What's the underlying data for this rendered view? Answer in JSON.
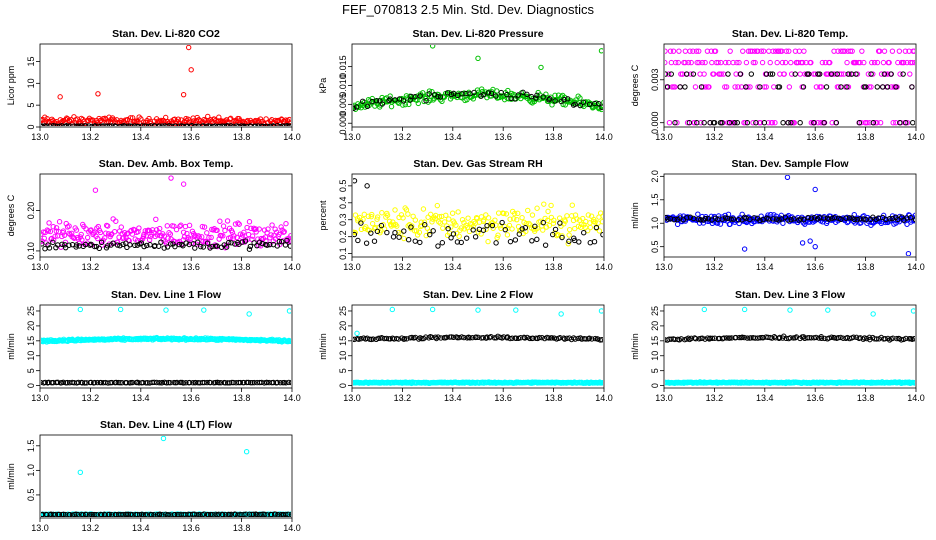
{
  "title": "FEF_070813  2.5 Min. Std. Dev. Diagnostics",
  "chart_data": [
    {
      "type": "scatter",
      "title": "Stan. Dev. Li-820 CO2",
      "ylabel": "Licor ppm",
      "xlim": [
        13.0,
        14.0
      ],
      "ylim": [
        0,
        19
      ],
      "xticks": [
        "13.0",
        "13.2",
        "13.4",
        "13.6",
        "13.8",
        "14.0"
      ],
      "yticks": [
        {
          "v": 0,
          "l": "0"
        },
        {
          "v": 5,
          "l": "5"
        },
        {
          "v": 10,
          "l": "10"
        },
        {
          "v": 15,
          "l": "15"
        }
      ],
      "series": [
        {
          "name": "primary",
          "color": "#ff0000",
          "base": 1.3,
          "spread": 1.4,
          "n": 220,
          "outliers": [
            [
              13.59,
              18.2
            ],
            [
              13.6,
              13.1
            ],
            [
              13.57,
              7.4
            ],
            [
              13.23,
              7.6
            ],
            [
              13.08,
              6.9
            ]
          ]
        },
        {
          "name": "secondary",
          "color": "#000000",
          "base": 0.2,
          "spread": 0.15,
          "n": 110,
          "outliers": []
        }
      ]
    },
    {
      "type": "scatter",
      "title": "Stan. Dev. Li-820 Pressure",
      "ylabel": "kPa",
      "xlim": [
        13.0,
        14.0
      ],
      "ylim": [
        -0.001,
        0.021
      ],
      "xticks": [
        "13.0",
        "13.2",
        "13.4",
        "13.6",
        "13.8",
        "14.0"
      ],
      "yticks": [
        {
          "v": 0,
          "l": "0.000"
        },
        {
          "v": 0.005,
          "l": "0.005"
        },
        {
          "v": 0.01,
          "l": "0.010"
        },
        {
          "v": 0.015,
          "l": "0.015"
        }
      ],
      "series": [
        {
          "name": "primary",
          "color": "#00c000",
          "base": 0.006,
          "spread": 0.002,
          "arch": 0.003,
          "n": 240,
          "outliers": [
            [
              13.32,
              0.0205
            ],
            [
              13.5,
              0.0172
            ],
            [
              13.75,
              0.0148
            ],
            [
              13.99,
              0.0192
            ]
          ]
        },
        {
          "name": "secondary",
          "color": "#000000",
          "base": 0.006,
          "spread": 0.0015,
          "arch": 0.003,
          "n": 60,
          "outliers": []
        }
      ]
    },
    {
      "type": "scatter",
      "title": "Stan. Dev. Li-820 Temp.",
      "ylabel": "degrees C",
      "xlim": [
        13.0,
        14.0
      ],
      "ylim": [
        -0.0003,
        0.0055
      ],
      "xticks": [
        "13.0",
        "13.2",
        "13.4",
        "13.6",
        "13.8",
        "14.0"
      ],
      "yticks": [
        {
          "v": 0,
          "l": "0.000"
        },
        {
          "v": 0.003,
          "l": "0.003"
        }
      ],
      "series": [
        {
          "name": "primary",
          "color": "#ff00ff",
          "levels": [
            0,
            0.0025,
            0.0034,
            0.0042,
            0.005
          ],
          "n": 260,
          "outliers": []
        },
        {
          "name": "secondary",
          "color": "#000000",
          "levels": [
            0,
            0.0025,
            0.0034
          ],
          "n": 70,
          "outliers": []
        }
      ]
    },
    {
      "type": "scatter",
      "title": "Stan. Dev. Amb. Box Temp.",
      "ylabel": "degrees C",
      "xlim": [
        13.0,
        14.0
      ],
      "ylim": [
        0.085,
        0.29
      ],
      "xticks": [
        "13.0",
        "13.2",
        "13.4",
        "13.6",
        "13.8",
        "14.0"
      ],
      "yticks": [
        {
          "v": 0.1,
          "l": "0.10"
        },
        {
          "v": 0.2,
          "l": "0.20"
        }
      ],
      "series": [
        {
          "name": "primary",
          "color": "#ff00ff",
          "base": 0.14,
          "spread": 0.045,
          "n": 260,
          "outliers": [
            [
              13.52,
              0.28
            ],
            [
              13.57,
              0.265
            ],
            [
              13.22,
              0.25
            ]
          ]
        },
        {
          "name": "secondary",
          "color": "#000000",
          "base": 0.115,
          "spread": 0.015,
          "n": 90,
          "outliers": []
        }
      ]
    },
    {
      "type": "scatter",
      "title": "Stan. Dev. Gas Stream RH",
      "ylabel": "percent",
      "xlim": [
        13.0,
        14.0
      ],
      "ylim": [
        0.08,
        0.57
      ],
      "xticks": [
        "13.0",
        "13.2",
        "13.4",
        "13.6",
        "13.8",
        "14.0"
      ],
      "yticks": [
        {
          "v": 0.1,
          "l": "0.1"
        },
        {
          "v": 0.2,
          "l": "0.2"
        },
        {
          "v": 0.3,
          "l": "0.3"
        },
        {
          "v": 0.4,
          "l": "0.4"
        },
        {
          "v": 0.5,
          "l": "0.5"
        }
      ],
      "series": [
        {
          "name": "primary",
          "color": "#ffff00",
          "base": 0.28,
          "spread": 0.14,
          "n": 220,
          "outliers": []
        },
        {
          "name": "secondary",
          "color": "#000000",
          "base": 0.22,
          "spread": 0.12,
          "n": 60,
          "outliers": [
            [
              13.01,
              0.53
            ],
            [
              13.06,
              0.5
            ]
          ]
        }
      ]
    },
    {
      "type": "scatter",
      "title": "Stan. Dev. Sample Flow",
      "ylabel": "ml/min",
      "xlim": [
        13.0,
        14.0
      ],
      "ylim": [
        0.28,
        2.05
      ],
      "xticks": [
        "13.0",
        "13.2",
        "13.4",
        "13.6",
        "13.8",
        "14.0"
      ],
      "yticks": [
        {
          "v": 0.5,
          "l": "0.5"
        },
        {
          "v": 1.0,
          "l": "1.0"
        },
        {
          "v": 1.5,
          "l": "1.5"
        },
        {
          "v": 2.0,
          "l": "2.0"
        }
      ],
      "series": [
        {
          "name": "primary",
          "color": "#0000ff",
          "base": 1.08,
          "spread": 0.14,
          "n": 260,
          "outliers": [
            [
              13.49,
              1.98
            ],
            [
              13.6,
              1.72
            ],
            [
              13.97,
              0.35
            ],
            [
              13.32,
              0.45
            ],
            [
              13.6,
              0.5
            ],
            [
              13.55,
              0.58
            ],
            [
              13.58,
              0.62
            ]
          ]
        },
        {
          "name": "secondary",
          "color": "#000000",
          "base": 1.1,
          "spread": 0.06,
          "n": 80,
          "outliers": []
        }
      ]
    },
    {
      "type": "scatter",
      "title": "Stan. Dev. Line 1 Flow",
      "ylabel": "ml/min",
      "xlim": [
        13.0,
        14.0
      ],
      "ylim": [
        -0.8,
        27
      ],
      "xticks": [
        "13.0",
        "13.2",
        "13.4",
        "13.6",
        "13.8",
        "14.0"
      ],
      "yticks": [
        {
          "v": 0,
          "l": "0"
        },
        {
          "v": 5,
          "l": "5"
        },
        {
          "v": 10,
          "l": "10"
        },
        {
          "v": 15,
          "l": "15"
        },
        {
          "v": 20,
          "l": "20"
        },
        {
          "v": 25,
          "l": "25"
        }
      ],
      "series": [
        {
          "name": "primary",
          "color": "#00ffff",
          "base": 15.3,
          "spread": 0.5,
          "arch": 0.7,
          "n": 320,
          "outliers": [
            [
              13.16,
              25.5
            ],
            [
              13.32,
              25.5
            ],
            [
              13.5,
              25.3
            ],
            [
              13.65,
              25.3
            ],
            [
              13.83,
              24
            ],
            [
              13.99,
              25
            ]
          ]
        },
        {
          "name": "secondary",
          "color": "#000000",
          "base": 1.0,
          "spread": 0.15,
          "n": 120,
          "outliers": []
        }
      ]
    },
    {
      "type": "scatter",
      "title": "Stan. Dev. Line 2 Flow",
      "ylabel": "ml/min",
      "xlim": [
        13.0,
        14.0
      ],
      "ylim": [
        -0.8,
        27
      ],
      "xticks": [
        "13.0",
        "13.2",
        "13.4",
        "13.6",
        "13.8",
        "14.0"
      ],
      "yticks": [
        {
          "v": 0,
          "l": "0"
        },
        {
          "v": 5,
          "l": "5"
        },
        {
          "v": 10,
          "l": "10"
        },
        {
          "v": 15,
          "l": "15"
        },
        {
          "v": 20,
          "l": "20"
        },
        {
          "v": 25,
          "l": "25"
        }
      ],
      "series": [
        {
          "name": "primary",
          "color": "#00ffff",
          "base": 1.0,
          "spread": 0.3,
          "n": 320,
          "outliers": [
            [
              13.02,
              17.5
            ],
            [
              13.16,
              25.5
            ],
            [
              13.32,
              25.5
            ],
            [
              13.5,
              25.3
            ],
            [
              13.65,
              25.3
            ],
            [
              13.83,
              24
            ],
            [
              13.99,
              25
            ]
          ]
        },
        {
          "name": "secondary",
          "color": "#000000",
          "base": 15.8,
          "spread": 0.5,
          "arch": 0.6,
          "n": 120,
          "outliers": []
        }
      ]
    },
    {
      "type": "scatter",
      "title": "Stan. Dev. Line 3 Flow",
      "ylabel": "ml/min",
      "xlim": [
        13.0,
        14.0
      ],
      "ylim": [
        -0.8,
        27
      ],
      "xticks": [
        "13.0",
        "13.2",
        "13.4",
        "13.6",
        "13.8",
        "14.0"
      ],
      "yticks": [
        {
          "v": 0,
          "l": "0"
        },
        {
          "v": 5,
          "l": "5"
        },
        {
          "v": 10,
          "l": "10"
        },
        {
          "v": 15,
          "l": "15"
        },
        {
          "v": 20,
          "l": "20"
        },
        {
          "v": 25,
          "l": "25"
        }
      ],
      "series": [
        {
          "name": "primary",
          "color": "#00ffff",
          "base": 1.0,
          "spread": 0.3,
          "n": 320,
          "outliers": [
            [
              13.16,
              25.5
            ],
            [
              13.32,
              25.5
            ],
            [
              13.5,
              25.3
            ],
            [
              13.65,
              25.3
            ],
            [
              13.83,
              24
            ],
            [
              13.99,
              25
            ]
          ]
        },
        {
          "name": "secondary",
          "color": "#000000",
          "base": 15.8,
          "spread": 0.5,
          "arch": 0.6,
          "n": 120,
          "outliers": []
        }
      ]
    },
    {
      "type": "scatter",
      "title": "Stan. Dev. Line 4 (LT) Flow",
      "ylabel": "ml/min",
      "xlim": [
        13.0,
        14.0
      ],
      "ylim": [
        0.03,
        1.72
      ],
      "xticks": [
        "13.0",
        "13.2",
        "13.4",
        "13.6",
        "13.8",
        "14.0"
      ],
      "yticks": [
        {
          "v": 0.5,
          "l": "0.5"
        },
        {
          "v": 1.0,
          "l": "1.0"
        },
        {
          "v": 1.5,
          "l": "1.5"
        }
      ],
      "series": [
        {
          "name": "primary",
          "color": "#00ffff",
          "base": 0.1,
          "spread": 0.015,
          "n": 300,
          "outliers": [
            [
              13.16,
              0.96
            ],
            [
              13.49,
              1.65
            ],
            [
              13.82,
              1.38
            ]
          ]
        },
        {
          "name": "secondary",
          "color": "#000000",
          "base": 0.1,
          "spread": 0.012,
          "n": 120,
          "outliers": []
        }
      ]
    }
  ]
}
